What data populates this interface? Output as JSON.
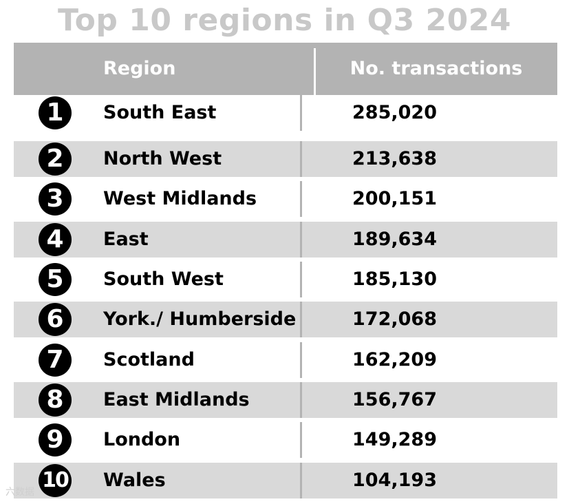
{
  "title": "Top 10 regions in Q3 2024",
  "colors": {
    "title": "#c8c8c8",
    "header_bg": "#b3b3b3",
    "stripe_bg": "#d9d9d9",
    "white_bg": "#ffffff",
    "text": "#000000",
    "rank_circle": "#000000"
  },
  "watermark": "六数据",
  "chart_data": {
    "type": "table",
    "columns": [
      "Region",
      "No. transactions"
    ],
    "rows": [
      {
        "rank": "1",
        "region": "South East",
        "transactions": "285,020"
      },
      {
        "rank": "2",
        "region": "North West",
        "transactions": "213,638"
      },
      {
        "rank": "3",
        "region": "West Midlands",
        "transactions": "200,151"
      },
      {
        "rank": "4",
        "region": "East",
        "transactions": "189,634"
      },
      {
        "rank": "5",
        "region": "South West",
        "transactions": "185,130"
      },
      {
        "rank": "6",
        "region": "York./ Humberside",
        "transactions": "172,068"
      },
      {
        "rank": "7",
        "region": "Scotland",
        "transactions": "162,209"
      },
      {
        "rank": "8",
        "region": "East Midlands",
        "transactions": "156,767"
      },
      {
        "rank": "9",
        "region": "London",
        "transactions": "149,289"
      },
      {
        "rank": "10",
        "region": "Wales",
        "transactions": "104,193"
      }
    ]
  }
}
